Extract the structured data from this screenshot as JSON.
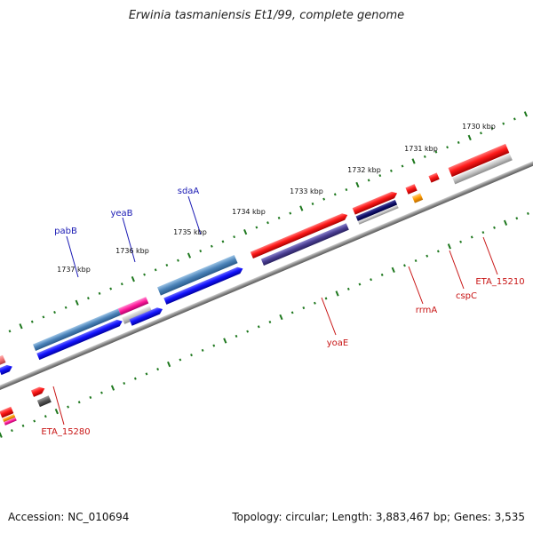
{
  "title": "Erwinia tasmaniensis Et1/99, complete genome",
  "footer": {
    "accession": "Accession: NC_010694",
    "info": "Topology: circular; Length: 3,883,467 bp; Genes: 3,535"
  },
  "colors": {
    "label_forward": "#1a1ab4",
    "label_reverse": "#c81414",
    "tick": "#1e781e",
    "backbone": "#7a7a7a"
  },
  "scale_labels": [
    "1730 kbp",
    "1731 kbp",
    "1732 kbp",
    "1733 kbp",
    "1734 kbp",
    "1735 kbp",
    "1736 kbp",
    "1737 kbp"
  ],
  "genes": [
    {
      "name": "pabB",
      "strand": "forward"
    },
    {
      "name": "yeaB",
      "strand": "forward"
    },
    {
      "name": "sdaA",
      "strand": "forward"
    },
    {
      "name": "yoaE",
      "strand": "reverse"
    },
    {
      "name": "rrmA",
      "strand": "reverse"
    },
    {
      "name": "cspC",
      "strand": "reverse"
    },
    {
      "name": "ETA_15210",
      "strand": "reverse"
    },
    {
      "name": "ETA_15280",
      "strand": "reverse"
    }
  ]
}
